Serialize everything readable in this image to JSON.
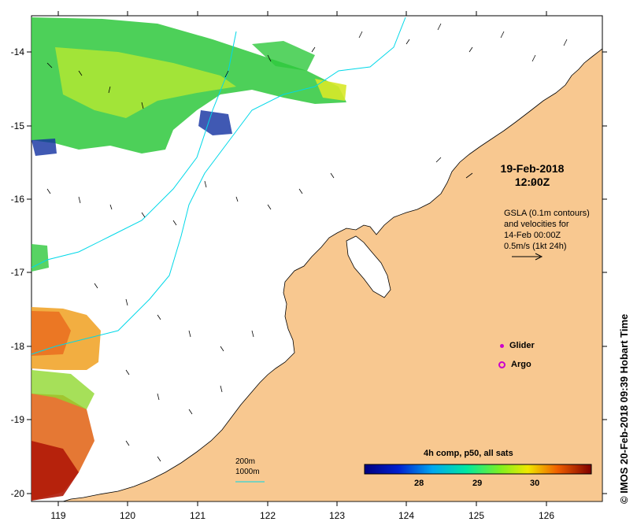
{
  "map": {
    "title_date": "19-Feb-2018",
    "title_time": "12:00Z",
    "gsla_lines": [
      "GSLA (0.1m contours)",
      "and velocities for",
      "14-Feb 00:00Z",
      "0.5m/s (1kt 24h)"
    ],
    "lon_ticks": [
      "119",
      "120",
      "121",
      "122",
      "123",
      "124",
      "125",
      "126"
    ],
    "lat_ticks": [
      "-14",
      "-15",
      "-16",
      "-17",
      "-18",
      "-19",
      "-20"
    ],
    "legend": {
      "glider": "Glider",
      "argo": "Argo"
    },
    "colorbar": {
      "title": "4h comp, p50, all sats",
      "labels": [
        "28",
        "29",
        "30"
      ]
    },
    "depth_legend": [
      "200m",
      "1000m"
    ],
    "credit": "© IMOS 20-Feb-2018 09:39 Hobart Time",
    "colors": {
      "land": "#f8c890",
      "ocean": "#ffffff",
      "contour": "#00d8e8",
      "marker": "#cc00cc"
    }
  }
}
